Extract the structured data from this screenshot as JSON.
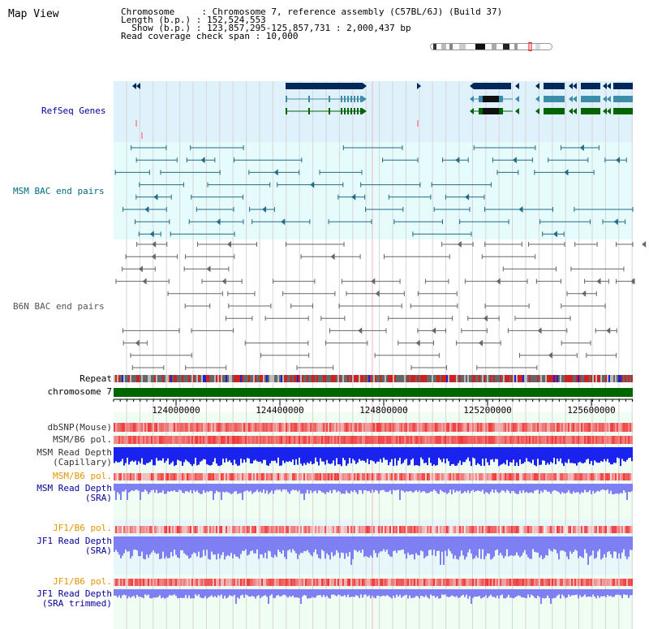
{
  "title": "Map View",
  "info": {
    "line1": "Chromosome     : Chromosome 7, reference assembly (C57BL/6J) (Build 37)",
    "line2": "Length (b.p.) : 152,524,553",
    "line3": "  Show (b.p.) : 123,857,295-125,857,731 : 2,000,437 bp",
    "line4": "Read coverage check span : 10,000"
  },
  "tracks": {
    "refseq": "RefSeq Genes",
    "msm_bac": "MSM BAC end pairs",
    "b6n_bac": "B6N BAC end pairs",
    "repeat": "Repeat",
    "chromosome": "chromosome 7",
    "dbsnp": "dbSNP(Mouse)",
    "msm_b6_pol_1": "MSM/B6 pol.",
    "msm_rd_cap_1": "MSM Read Depth",
    "msm_rd_cap_2": "(Capillary)",
    "msm_b6_pol_2": "MSM/B6 pol.",
    "msm_rd_sra_1": "MSM Read Depth",
    "msm_rd_sra_2": "(SRA)",
    "jf1_b6_pol_1": "JF1/B6 pol.",
    "jf1_rd_sra_1": "JF1 Read Depth",
    "jf1_rd_sra_2": "(SRA)",
    "jf1_b6_pol_2": "JF1/B6 pol.",
    "jf1_rd_trim_1": "JF1 Read Depth",
    "jf1_rd_trim_2": "(SRA trimmed)"
  },
  "ruler": {
    "ticks": [
      "124000000",
      "124400000",
      "124800000",
      "125200000",
      "125600000"
    ]
  },
  "colors": {
    "refseq_bg": "#dff1fb",
    "msm_bac_bg": "#e6fbfb",
    "b6n_bac_bg": "#ffffff",
    "lower_bg": "#f0fdf3",
    "label_blue": "#000099",
    "label_teal": "#006b7f",
    "label_orange": "#e69500",
    "chromosome_bar": "#006600",
    "gene_navy": "#00285a",
    "gene_teal": "#3c8caa",
    "gene_green": "#006400",
    "msm_bac": "#206b85",
    "b6n_bac": "#666666",
    "read_depth_cap": "#1a22ee",
    "read_depth_sra": "#7f7ff4"
  }
}
